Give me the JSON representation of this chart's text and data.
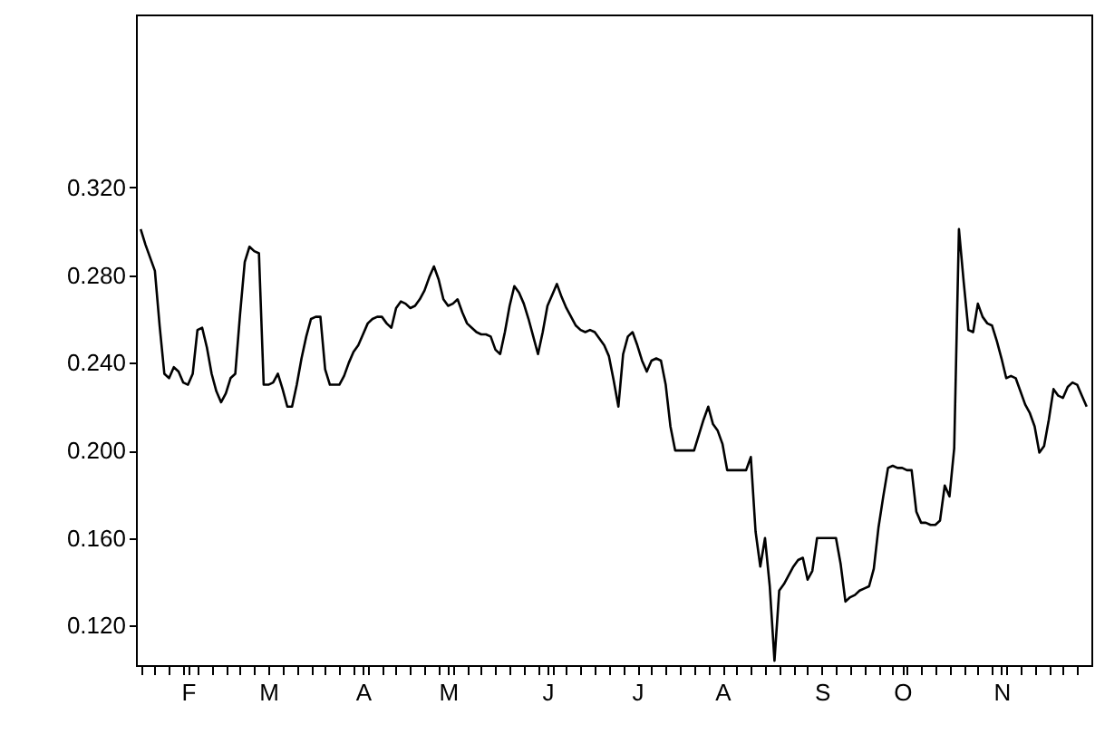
{
  "chart_data": {
    "type": "line",
    "categories": [
      null,
      null,
      null,
      null,
      null,
      null,
      null,
      null,
      null,
      null,
      "F",
      null,
      null,
      null,
      null,
      null,
      null,
      null,
      null,
      null,
      null,
      null,
      null,
      null,
      null,
      null,
      null,
      "M",
      null,
      null,
      null,
      null,
      null,
      null,
      null,
      null,
      null,
      null,
      null,
      null,
      null,
      null,
      null,
      null,
      null,
      null,
      null,
      "A",
      null,
      null,
      null,
      null,
      null,
      null,
      null,
      null,
      null,
      null,
      null,
      null,
      null,
      null,
      null,
      null,
      null,
      "M",
      null,
      null,
      null,
      null,
      null,
      null,
      null,
      null,
      null,
      null,
      null,
      null,
      null,
      null,
      null,
      null,
      null,
      null,
      null,
      null,
      "J",
      null,
      null,
      null,
      null,
      null,
      null,
      null,
      null,
      null,
      null,
      null,
      null,
      null,
      null,
      null,
      null,
      null,
      null,
      "J",
      null,
      null,
      null,
      null,
      null,
      null,
      null,
      null,
      null,
      null,
      null,
      null,
      null,
      null,
      null,
      null,
      null,
      "A",
      null,
      null,
      null,
      null,
      null,
      null,
      null,
      null,
      null,
      null,
      null,
      null,
      null,
      null,
      null,
      null,
      null,
      null,
      null,
      null,
      "S",
      null,
      null,
      null,
      null,
      null,
      null,
      null,
      null,
      null,
      null,
      null,
      null,
      null,
      null,
      null,
      null,
      "O",
      null,
      null,
      null,
      null,
      null,
      null,
      null,
      null,
      null,
      null,
      null,
      null,
      null,
      null,
      null,
      null,
      null,
      null,
      null,
      null,
      "N",
      null,
      null,
      null,
      null,
      null,
      null,
      null,
      null,
      null,
      null,
      null,
      null,
      null,
      null,
      null,
      null,
      null,
      null
    ],
    "series": [
      {
        "color": "#000000",
        "values": [
          0.301,
          0.294,
          0.288,
          0.282,
          0.257,
          0.235,
          0.233,
          0.238,
          0.236,
          0.231,
          0.23,
          0.235,
          0.255,
          0.256,
          0.247,
          0.235,
          0.227,
          0.222,
          0.226,
          0.233,
          0.235,
          0.262,
          0.286,
          0.293,
          0.291,
          0.29,
          0.23,
          0.23,
          0.231,
          0.235,
          0.228,
          0.22,
          0.22,
          0.23,
          0.242,
          0.252,
          0.26,
          0.261,
          0.261,
          0.237,
          0.23,
          0.23,
          0.23,
          0.234,
          0.24,
          0.245,
          0.248,
          0.253,
          0.258,
          0.26,
          0.261,
          0.261,
          0.258,
          0.256,
          0.265,
          0.268,
          0.267,
          0.265,
          0.266,
          0.269,
          0.273,
          0.279,
          0.284,
          0.278,
          0.269,
          0.266,
          0.267,
          0.269,
          0.263,
          0.258,
          0.256,
          0.254,
          0.253,
          0.253,
          0.252,
          0.246,
          0.244,
          0.254,
          0.266,
          0.275,
          0.272,
          0.267,
          0.26,
          0.252,
          0.244,
          0.254,
          0.266,
          0.271,
          0.276,
          0.27,
          0.265,
          0.261,
          0.257,
          0.255,
          0.254,
          0.255,
          0.254,
          0.251,
          0.248,
          0.243,
          0.232,
          0.22,
          0.244,
          0.252,
          0.254,
          0.248,
          0.241,
          0.236,
          0.241,
          0.242,
          0.241,
          0.23,
          0.211,
          0.2,
          0.2,
          0.2,
          0.2,
          0.2,
          0.207,
          0.214,
          0.22,
          0.212,
          0.209,
          0.203,
          0.191,
          0.191,
          0.191,
          0.191,
          0.191,
          0.197,
          0.163,
          0.147,
          0.16,
          0.138,
          0.104,
          0.136,
          0.139,
          0.143,
          0.147,
          0.15,
          0.151,
          0.141,
          0.145,
          0.16,
          0.16,
          0.16,
          0.16,
          0.16,
          0.148,
          0.131,
          0.133,
          0.134,
          0.136,
          0.137,
          0.138,
          0.146,
          0.165,
          0.179,
          0.192,
          0.193,
          0.192,
          0.192,
          0.191,
          0.191,
          0.172,
          0.167,
          0.167,
          0.166,
          0.166,
          0.168,
          0.184,
          0.179,
          0.201,
          0.301,
          0.277,
          0.255,
          0.254,
          0.267,
          0.261,
          0.258,
          0.257,
          0.25,
          0.242,
          0.233,
          0.234,
          0.233,
          0.227,
          0.221,
          0.217,
          0.211,
          0.199,
          0.202,
          0.214,
          0.228,
          0.225,
          0.224,
          0.229,
          0.231,
          0.23,
          0.225,
          0.22
        ]
      }
    ],
    "ylim": [
      0.102,
      0.399
    ],
    "yticks": [
      {
        "value": 0.12,
        "label": "0.120"
      },
      {
        "value": 0.16,
        "label": "0.160"
      },
      {
        "value": 0.2,
        "label": "0.200"
      },
      {
        "value": 0.24,
        "label": "0.240"
      },
      {
        "value": 0.28,
        "label": "0.280"
      },
      {
        "value": 0.32,
        "label": "0.320"
      }
    ],
    "grid": false
  }
}
